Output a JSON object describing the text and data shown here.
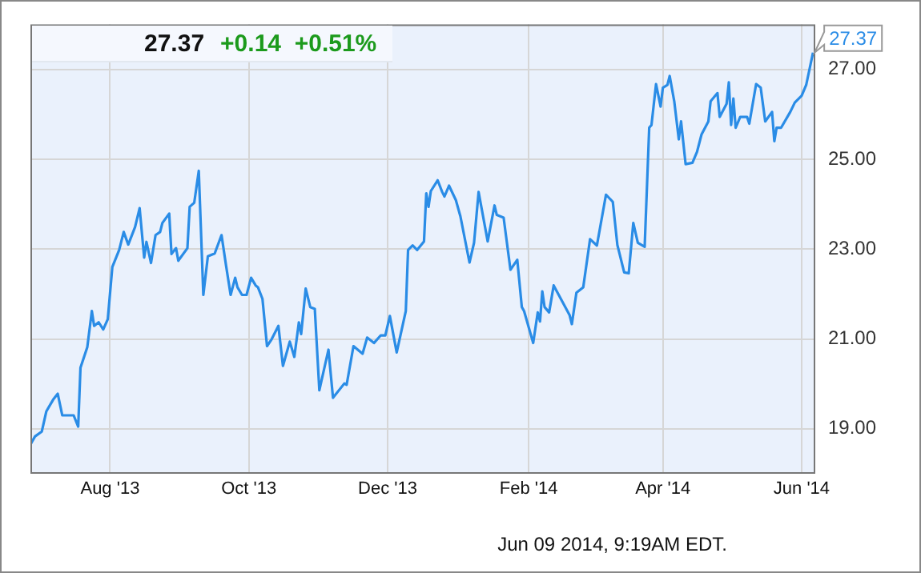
{
  "chart_data": {
    "type": "line",
    "title": "27.37",
    "subtitle": "+0.14  +0.51%",
    "x": [
      "2013-06-27",
      "2013-06-29",
      "2013-07-02",
      "2013-07-04",
      "2013-07-07",
      "2013-07-09",
      "2013-07-11",
      "2013-07-16",
      "2013-07-18",
      "2013-07-19",
      "2013-07-22",
      "2013-07-24",
      "2013-07-25",
      "2013-07-27",
      "2013-07-29",
      "2013-07-31",
      "2013-08-02",
      "2013-08-05",
      "2013-08-07",
      "2013-08-09",
      "2013-08-12",
      "2013-08-14",
      "2013-08-16",
      "2013-08-17",
      "2013-08-19",
      "2013-08-21",
      "2013-08-23",
      "2013-08-24",
      "2013-08-27",
      "2013-08-28",
      "2013-08-30",
      "2013-08-31",
      "2013-09-04",
      "2013-09-05",
      "2013-09-07",
      "2013-09-09",
      "2013-09-11",
      "2013-09-13",
      "2013-09-16",
      "2013-09-19",
      "2013-09-21",
      "2013-09-23",
      "2013-09-25",
      "2013-09-26",
      "2013-09-28",
      "2013-09-30",
      "2013-10-02",
      "2013-10-04",
      "2013-10-05",
      "2013-10-07",
      "2013-10-09",
      "2013-10-11",
      "2013-10-14",
      "2013-10-16",
      "2013-10-19",
      "2013-10-21",
      "2013-10-23",
      "2013-10-24",
      "2013-10-26",
      "2013-10-28",
      "2013-10-30",
      "2013-11-01",
      "2013-11-05",
      "2013-11-07",
      "2013-11-12",
      "2013-11-13",
      "2013-11-16",
      "2013-11-20",
      "2013-11-22",
      "2013-11-25",
      "2013-11-28",
      "2013-11-30",
      "2013-12-02",
      "2013-12-05",
      "2013-12-09",
      "2013-12-10",
      "2013-12-12",
      "2013-12-14",
      "2013-12-17",
      "2013-12-18",
      "2013-12-19",
      "2013-12-20",
      "2013-12-23",
      "2013-12-25",
      "2013-12-26",
      "2013-12-28",
      "2013-12-31",
      "2014-01-02",
      "2014-01-06",
      "2014-01-08",
      "2014-01-10",
      "2014-01-14",
      "2014-01-17",
      "2014-01-18",
      "2014-01-21",
      "2014-01-24",
      "2014-01-27",
      "2014-01-29",
      "2014-01-30",
      "2014-02-03",
      "2014-02-05",
      "2014-02-06",
      "2014-02-07",
      "2014-02-08",
      "2014-02-10",
      "2014-02-12",
      "2014-02-19",
      "2014-02-20",
      "2014-02-22",
      "2014-02-25",
      "2014-02-28",
      "2014-03-03",
      "2014-03-07",
      "2014-03-10",
      "2014-03-12",
      "2014-03-15",
      "2014-03-17",
      "2014-03-19",
      "2014-03-21",
      "2014-03-24",
      "2014-03-26",
      "2014-03-27",
      "2014-03-29",
      "2014-03-31",
      "2014-04-01",
      "2014-04-03",
      "2014-04-04",
      "2014-04-06",
      "2014-04-08",
      "2014-04-09",
      "2014-04-11",
      "2014-04-14",
      "2014-04-16",
      "2014-04-18",
      "2014-04-21",
      "2014-04-22",
      "2014-04-25",
      "2014-04-26",
      "2014-04-29",
      "2014-04-30",
      "2014-05-01",
      "2014-05-02",
      "2014-05-03",
      "2014-05-05",
      "2014-05-08",
      "2014-05-09",
      "2014-05-12",
      "2014-05-14",
      "2014-05-16",
      "2014-05-19",
      "2014-05-20",
      "2014-05-21",
      "2014-05-23",
      "2014-05-27",
      "2014-05-29",
      "2014-06-01",
      "2014-06-03",
      "2014-06-06"
    ],
    "series": [
      {
        "color": "#2a8ce6",
        "values": [
          18.65,
          18.83,
          18.94,
          19.39,
          19.65,
          19.78,
          19.3,
          19.3,
          19.05,
          20.36,
          20.82,
          21.62,
          21.29,
          21.37,
          21.21,
          21.44,
          22.6,
          22.98,
          23.38,
          23.1,
          23.49,
          23.91,
          22.81,
          23.16,
          22.69,
          23.31,
          23.38,
          23.58,
          23.79,
          22.89,
          23.02,
          22.74,
          23.02,
          23.94,
          24.03,
          24.74,
          21.98,
          22.84,
          22.9,
          23.31,
          22.63,
          21.98,
          22.36,
          22.15,
          21.98,
          21.98,
          22.36,
          22.19,
          22.15,
          21.89,
          20.84,
          20.99,
          21.29,
          20.4,
          20.94,
          20.6,
          21.37,
          21.11,
          22.12,
          21.71,
          21.67,
          19.86,
          20.76,
          19.69,
          20.01,
          19.98,
          20.84,
          20.67,
          21.03,
          20.91,
          21.08,
          21.08,
          21.51,
          20.7,
          21.62,
          22.98,
          23.08,
          22.98,
          23.17,
          24.24,
          23.94,
          24.29,
          24.53,
          24.27,
          24.17,
          24.41,
          24.09,
          23.73,
          22.7,
          23.14,
          24.27,
          23.17,
          23.97,
          23.76,
          23.7,
          22.54,
          22.76,
          21.71,
          21.62,
          20.91,
          21.59,
          21.39,
          22.06,
          21.71,
          21.59,
          22.19,
          21.53,
          21.33,
          22.03,
          22.15,
          23.22,
          23.08,
          24.21,
          24.05,
          23.09,
          22.48,
          22.46,
          23.58,
          23.14,
          23.05,
          25.7,
          25.76,
          26.67,
          26.17,
          26.59,
          26.65,
          26.85,
          26.29,
          25.44,
          25.84,
          24.89,
          24.92,
          25.16,
          25.55,
          25.84,
          26.29,
          26.47,
          25.94,
          26.23,
          26.71,
          25.76,
          26.35,
          25.7,
          25.94,
          25.94,
          25.79,
          26.67,
          26.59,
          25.84,
          26.05,
          25.4,
          25.7,
          25.7,
          26.05,
          26.26,
          26.41,
          26.65,
          27.37
        ]
      }
    ],
    "xlim": [
      "2013-06-27",
      "2014-06-07"
    ],
    "xticks": [
      {
        "value": "2013-08-01",
        "label": "Aug '13"
      },
      {
        "value": "2013-10-01",
        "label": "Oct '13"
      },
      {
        "value": "2013-12-01",
        "label": "Dec '13"
      },
      {
        "value": "2014-02-01",
        "label": "Feb '14"
      },
      {
        "value": "2014-04-01",
        "label": "Apr '14"
      },
      {
        "value": "2014-06-01",
        "label": "Jun '14"
      }
    ],
    "ylim": [
      18,
      28
    ],
    "yticks": [
      {
        "value": 19,
        "label": "19.00"
      },
      {
        "value": 21,
        "label": "21.00"
      },
      {
        "value": 23,
        "label": "23.00"
      },
      {
        "value": 25,
        "label": "25.00"
      },
      {
        "value": 27,
        "label": "27.00"
      }
    ],
    "grid": true,
    "marker": "none",
    "line_style": "solid",
    "annotations": [
      {
        "text": "27.37",
        "x": "2014-06-06",
        "y": 27.37
      },
      "Jun 09 2014, 9:19AM EDT."
    ]
  }
}
